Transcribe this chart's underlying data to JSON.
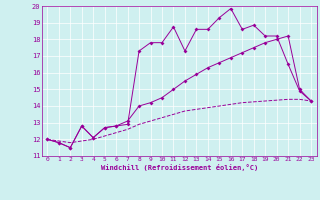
{
  "xlabel": "Windchill (Refroidissement éolien,°C)",
  "background_color": "#cff0f0",
  "grid_color": "#ffffff",
  "line_color": "#990099",
  "xlim": [
    -0.5,
    23.5
  ],
  "ylim": [
    11,
    20
  ],
  "xticks": [
    0,
    1,
    2,
    3,
    4,
    5,
    6,
    7,
    8,
    9,
    10,
    11,
    12,
    13,
    14,
    15,
    16,
    17,
    18,
    19,
    20,
    21,
    22,
    23
  ],
  "yticks": [
    11,
    12,
    13,
    14,
    15,
    16,
    17,
    18,
    19,
    20
  ],
  "x": [
    0,
    1,
    2,
    3,
    4,
    5,
    6,
    7,
    8,
    9,
    10,
    11,
    12,
    13,
    14,
    15,
    16,
    17,
    18,
    19,
    20,
    21,
    22,
    23
  ],
  "line1": [
    12.0,
    11.8,
    11.5,
    12.8,
    12.1,
    12.7,
    12.8,
    12.9,
    17.3,
    17.8,
    17.8,
    18.75,
    17.3,
    18.6,
    18.6,
    19.3,
    19.85,
    18.6,
    18.85,
    18.2,
    18.2,
    16.5,
    14.9,
    14.3
  ],
  "line2": [
    12.0,
    11.8,
    11.5,
    12.8,
    12.1,
    12.7,
    12.8,
    13.1,
    14.0,
    14.2,
    14.5,
    15.0,
    15.5,
    15.9,
    16.3,
    16.6,
    16.9,
    17.2,
    17.5,
    17.8,
    18.0,
    18.2,
    15.0,
    14.3
  ],
  "line3": [
    12.0,
    11.9,
    11.8,
    11.9,
    12.0,
    12.2,
    12.4,
    12.6,
    12.9,
    13.1,
    13.3,
    13.5,
    13.7,
    13.8,
    13.9,
    14.0,
    14.1,
    14.2,
    14.25,
    14.3,
    14.35,
    14.4,
    14.4,
    14.3
  ],
  "xlabel_fontsize": 5.0,
  "tick_fontsize": 4.5,
  "ytick_fontsize": 5.0,
  "linewidth": 0.7,
  "markersize": 2.0
}
